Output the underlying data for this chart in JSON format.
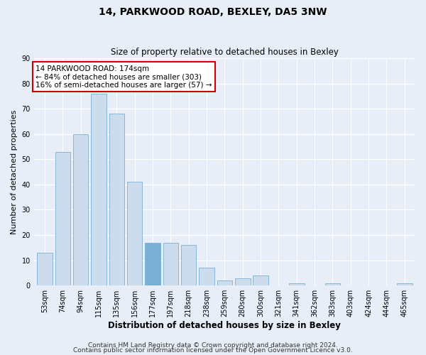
{
  "title": "14, PARKWOOD ROAD, BEXLEY, DA5 3NW",
  "subtitle": "Size of property relative to detached houses in Bexley",
  "xlabel": "Distribution of detached houses by size in Bexley",
  "ylabel": "Number of detached properties",
  "categories": [
    "53sqm",
    "74sqm",
    "94sqm",
    "115sqm",
    "135sqm",
    "156sqm",
    "177sqm",
    "197sqm",
    "218sqm",
    "238sqm",
    "259sqm",
    "280sqm",
    "300sqm",
    "321sqm",
    "341sqm",
    "362sqm",
    "383sqm",
    "403sqm",
    "424sqm",
    "444sqm",
    "465sqm"
  ],
  "values": [
    13,
    53,
    60,
    76,
    68,
    41,
    17,
    17,
    16,
    7,
    2,
    3,
    4,
    0,
    1,
    0,
    1,
    0,
    0,
    0,
    1
  ],
  "bar_color": "#ccdcec",
  "bar_edge_color": "#7aafd4",
  "highlight_index": 6,
  "highlight_color": "#7aafd4",
  "ylim": [
    0,
    90
  ],
  "yticks": [
    0,
    10,
    20,
    30,
    40,
    50,
    60,
    70,
    80,
    90
  ],
  "annotation_text": "14 PARKWOOD ROAD: 174sqm\n← 84% of detached houses are smaller (303)\n16% of semi-detached houses are larger (57) →",
  "annotation_box_color": "#ffffff",
  "annotation_box_edge_color": "#cc0000",
  "footer_line1": "Contains HM Land Registry data © Crown copyright and database right 2024.",
  "footer_line2": "Contains public sector information licensed under the Open Government Licence v3.0.",
  "bg_color": "#e8eef8",
  "plot_bg_color": "#e8eef8",
  "grid_color": "#ffffff",
  "title_fontsize": 10,
  "subtitle_fontsize": 8.5,
  "xlabel_fontsize": 8.5,
  "ylabel_fontsize": 8,
  "tick_fontsize": 7,
  "footer_fontsize": 6.5,
  "annot_fontsize": 7.5
}
